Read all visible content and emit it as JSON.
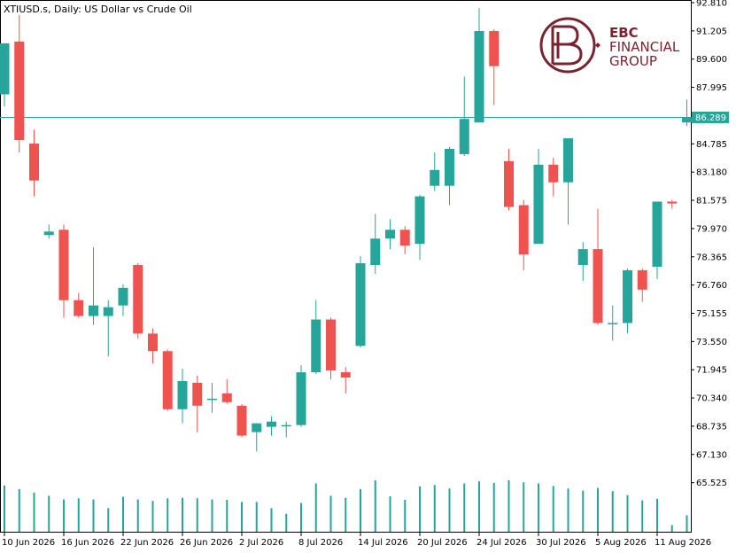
{
  "header": {
    "title": "XTIUSD.s, Daily:  US Dollar vs Crude Oil"
  },
  "logo": {
    "line1": "EBC",
    "line2": "FINANCIAL",
    "line3": "GROUP",
    "color": "#7a2330"
  },
  "colors": {
    "bull": "#26a69a",
    "bear": "#ef5350",
    "volume": "#26a69a",
    "current_line": "#26a69a",
    "axis": "#000000"
  },
  "current_price": {
    "label": "86.289",
    "value": 86.289
  },
  "chart_data": {
    "type": "candlestick",
    "title": "XTIUSD.s, Daily:  US Dollar vs Crude Oil",
    "xlabel": "",
    "ylabel": "",
    "ylim": [
      64.4,
      92.81
    ],
    "y_ticks": [
      "92.810",
      "91.205",
      "89.600",
      "87.995",
      "86.390",
      "84.785",
      "83.180",
      "81.575",
      "79.970",
      "78.365",
      "76.760",
      "75.155",
      "73.550",
      "71.945",
      "70.340",
      "68.735",
      "67.130",
      "65.525"
    ],
    "x_tick_labels": [
      "10 Jun 2026",
      "16 Jun 2026",
      "22 Jun 2026",
      "26 Jun 2026",
      "2 Jul 2026",
      "8 Jul 2026",
      "14 Jul 2026",
      "20 Jul 2026",
      "24 Jul 2026",
      "30 Jul 2026",
      "5 Aug 2026",
      "11 Aug 2026"
    ],
    "x_tick_index": [
      0,
      4,
      8,
      12,
      16,
      20,
      24,
      28,
      32,
      36,
      40,
      44
    ],
    "grid": false,
    "candles": [
      {
        "o": 87.6,
        "h": 90.4,
        "l": 86.9,
        "c": 90.5
      },
      {
        "o": 90.6,
        "h": 92.1,
        "l": 84.3,
        "c": 85.0
      },
      {
        "o": 84.8,
        "h": 85.6,
        "l": 81.8,
        "c": 82.7
      },
      {
        "o": 79.6,
        "h": 80.2,
        "l": 79.4,
        "c": 79.8
      },
      {
        "o": 79.9,
        "h": 80.2,
        "l": 74.9,
        "c": 75.9
      },
      {
        "o": 75.9,
        "h": 76.3,
        "l": 74.9,
        "c": 75.0
      },
      {
        "o": 75.0,
        "h": 78.9,
        "l": 74.5,
        "c": 75.6
      },
      {
        "o": 75.0,
        "h": 75.9,
        "l": 72.7,
        "c": 75.5
      },
      {
        "o": 75.6,
        "h": 76.8,
        "l": 75.0,
        "c": 76.6
      },
      {
        "o": 77.9,
        "h": 78.0,
        "l": 73.7,
        "c": 74.0
      },
      {
        "o": 74.0,
        "h": 74.3,
        "l": 72.3,
        "c": 73.0
      },
      {
        "o": 73.0,
        "h": 73.1,
        "l": 69.6,
        "c": 69.7
      },
      {
        "o": 69.7,
        "h": 72.0,
        "l": 68.9,
        "c": 71.3
      },
      {
        "o": 71.2,
        "h": 71.6,
        "l": 68.4,
        "c": 69.9
      },
      {
        "o": 70.3,
        "h": 71.2,
        "l": 69.5,
        "c": 70.3
      },
      {
        "o": 70.6,
        "h": 71.4,
        "l": 70.0,
        "c": 70.1
      },
      {
        "o": 69.9,
        "h": 70.0,
        "l": 68.1,
        "c": 68.2
      },
      {
        "o": 68.4,
        "h": 68.9,
        "l": 67.3,
        "c": 68.9
      },
      {
        "o": 68.7,
        "h": 69.3,
        "l": 68.2,
        "c": 69.0
      },
      {
        "o": 68.8,
        "h": 69.0,
        "l": 68.1,
        "c": 68.8
      },
      {
        "o": 68.8,
        "h": 72.2,
        "l": 68.7,
        "c": 71.8
      },
      {
        "o": 71.8,
        "h": 75.9,
        "l": 71.7,
        "c": 74.8
      },
      {
        "o": 74.8,
        "h": 74.9,
        "l": 71.4,
        "c": 71.9
      },
      {
        "o": 71.8,
        "h": 72.1,
        "l": 70.6,
        "c": 71.5
      },
      {
        "o": 73.3,
        "h": 78.4,
        "l": 73.2,
        "c": 78.0
      },
      {
        "o": 77.9,
        "h": 80.8,
        "l": 77.4,
        "c": 79.4
      },
      {
        "o": 79.4,
        "h": 80.5,
        "l": 78.8,
        "c": 79.9
      },
      {
        "o": 79.9,
        "h": 80.1,
        "l": 78.5,
        "c": 79.0
      },
      {
        "o": 79.1,
        "h": 81.9,
        "l": 78.2,
        "c": 81.8
      },
      {
        "o": 82.4,
        "h": 84.3,
        "l": 82.1,
        "c": 83.3
      },
      {
        "o": 82.4,
        "h": 84.6,
        "l": 81.3,
        "c": 84.5
      },
      {
        "o": 84.2,
        "h": 88.6,
        "l": 84.1,
        "c": 86.2
      },
      {
        "o": 86.0,
        "h": 92.5,
        "l": 86.0,
        "c": 91.2
      },
      {
        "o": 91.2,
        "h": 91.3,
        "l": 87.0,
        "c": 89.2
      },
      {
        "o": 83.8,
        "h": 84.5,
        "l": 81.0,
        "c": 81.2
      },
      {
        "o": 81.3,
        "h": 81.6,
        "l": 77.6,
        "c": 78.5
      },
      {
        "o": 79.1,
        "h": 84.5,
        "l": 79.1,
        "c": 83.6
      },
      {
        "o": 83.6,
        "h": 84.0,
        "l": 81.8,
        "c": 82.6
      },
      {
        "o": 82.6,
        "h": 85.1,
        "l": 80.2,
        "c": 85.1
      },
      {
        "o": 77.9,
        "h": 79.2,
        "l": 77.0,
        "c": 78.8
      },
      {
        "o": 78.8,
        "h": 81.1,
        "l": 74.5,
        "c": 74.6
      },
      {
        "o": 74.6,
        "h": 75.6,
        "l": 73.6,
        "c": 74.6
      },
      {
        "o": 74.6,
        "h": 77.7,
        "l": 74.0,
        "c": 77.6
      },
      {
        "o": 77.6,
        "h": 77.7,
        "l": 75.8,
        "c": 76.5
      },
      {
        "o": 77.8,
        "h": 81.5,
        "l": 77.1,
        "c": 81.5
      },
      {
        "o": 81.5,
        "h": 81.6,
        "l": 81.1,
        "c": 81.4
      },
      {
        "o": 86.0,
        "h": 87.3,
        "l": 85.8,
        "c": 86.3
      }
    ],
    "volume_relative": [
      0.9,
      0.83,
      0.76,
      0.7,
      0.63,
      0.65,
      0.63,
      0.46,
      0.68,
      0.63,
      0.6,
      0.65,
      0.66,
      0.65,
      0.63,
      0.62,
      0.58,
      0.58,
      0.46,
      0.35,
      0.56,
      0.94,
      0.7,
      0.66,
      0.83,
      1.0,
      0.69,
      0.62,
      0.88,
      0.91,
      0.84,
      0.94,
      0.98,
      0.95,
      1.0,
      0.96,
      0.94,
      0.89,
      0.84,
      0.8,
      0.85,
      0.79,
      0.71,
      0.61,
      0.64,
      0.13,
      0.32
    ]
  }
}
